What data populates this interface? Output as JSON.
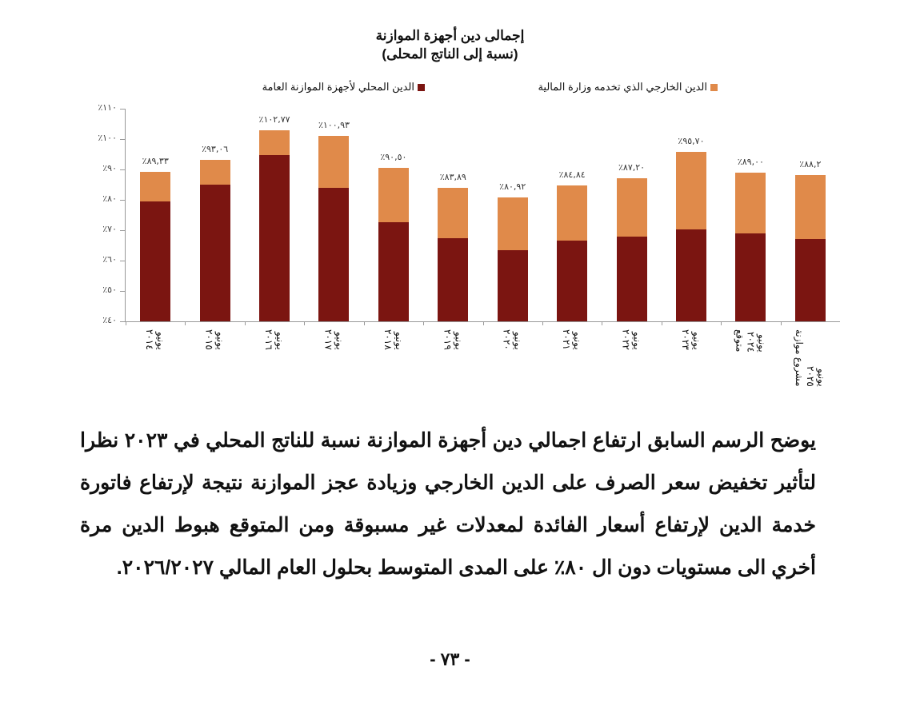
{
  "chart_title_line1": "إجمالى دين أجهزة الموازنة",
  "chart_title_line2": "(نسبة إلى الناتج المحلى)",
  "legend": {
    "domestic": "الدين المحلي لأجهزة الموازنة العامة",
    "external": "الدين الخارجي الذي تخدمه وزارة المالية"
  },
  "colors": {
    "domestic": "#7b1511",
    "external": "#e08a4a"
  },
  "y_ticks": [
    "٪٤٠",
    "٪٥٠",
    "٪٦٠",
    "٪٧٠",
    "٪٨٠",
    "٪٩٠",
    "٪١٠٠",
    "٪١١٠"
  ],
  "chart_data": {
    "type": "bar",
    "stacked": true,
    "title": "إجمالى دين أجهزة الموازنة (نسبة إلى الناتج المحلى)",
    "xlabel": "",
    "ylabel": "",
    "ylim": [
      40,
      110
    ],
    "grid": false,
    "legend_position": "top",
    "categories": [
      "يونيو ٢٠١٤",
      "يونيو ٢٠١٥",
      "يونيو ٢٠١٦",
      "يونيو ٢٠١٧",
      "يونيو ٢٠١٨",
      "يونيو ٢٠١٩",
      "يونيو ٢٠٢٠",
      "يونيو ٢٠٢١",
      "يونيو ٢٠٢٢",
      "يونيو ٢٠٢٣",
      "يونيو ٢٠٢٤ متوقع",
      "يونيو ٢٠٢٥ مشروع موازنة"
    ],
    "series": [
      {
        "name": "الدين المحلي لأجهزة الموازنة العامة",
        "values": [
          79.5,
          85.0,
          94.7,
          84.0,
          72.6,
          67.4,
          63.4,
          66.6,
          67.9,
          70.3,
          69.0,
          67.1
        ]
      },
      {
        "name": "الدين الخارجي الذي تخدمه وزارة المالية",
        "values": [
          9.83,
          8.06,
          8.07,
          16.93,
          17.9,
          16.49,
          17.52,
          18.24,
          19.3,
          25.4,
          20.0,
          21.1
        ]
      }
    ],
    "totals": [
      89.33,
      93.06,
      102.77,
      100.93,
      90.5,
      83.89,
      80.92,
      84.84,
      87.2,
      95.7,
      89.0,
      88.2
    ],
    "total_labels": [
      "٪٨٩,٣٣",
      "٪٩٣,٠٦",
      "٪١٠٢,٧٧",
      "٪١٠٠,٩٣",
      "٪٩٠,٥٠",
      "٪٨٣,٨٩",
      "٪٨٠,٩٢",
      "٪٨٤,٨٤",
      "٪٨٧,٢٠",
      "٪٩٥,٧٠",
      "٪٨٩,٠٠",
      "٪٨٨,٢"
    ]
  },
  "x_labels": [
    "يونيو\n٢٠١٤",
    "يونيو\n٢٠١٥",
    "يونيو\n٢٠١٦",
    "يونيو\n٢٠١٧",
    "يونيو\n٢٠١٨",
    "يونيو\n٢٠١٩",
    "يونيو\n٢٠٢٠",
    "يونيو\n٢٠٢١",
    "يونيو\n٢٠٢٢",
    "يونيو\n٢٠٢٣",
    "يونيو\n٢٠٢٤\nمتوقع",
    "يونيو\n٢٠٢٥\nمشروع موازنة"
  ],
  "paragraph": "يوضح الرسم السابق ارتفاع اجمالي دين أجهزة الموازنة نسبة للناتج المحلي في ٢٠٢٣ نظرا لتأثير تخفيض سعر الصرف على الدين الخارجي وزيادة عجز الموازنة نتيجة لإرتفاع فاتورة خدمة الدين لإرتفاع أسعار الفائدة لمعدلات غير مسبوقة ومن المتوقع هبوط الدين مرة أخري الى مستويات دون ال ٨٠٪ على المدى المتوسط بحلول العام المالي ٢٠٢٦/٢٠٢٧.",
  "page_number": "- ٧٣ -"
}
